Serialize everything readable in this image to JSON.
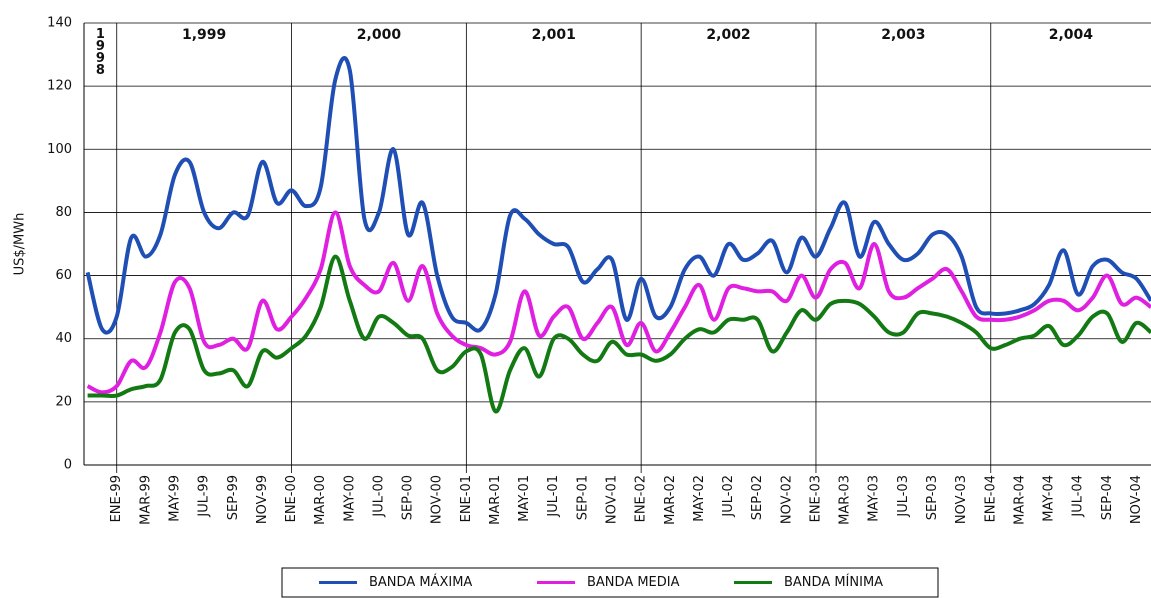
{
  "chart_data": {
    "type": "line",
    "y_label": "US$/MWh",
    "year_labels": [
      "1998",
      "1,999",
      "2,000",
      "2,001",
      "2,002",
      "2,003",
      "2,004"
    ],
    "categories": [
      null,
      null,
      "ENE-99",
      null,
      "MAR-99",
      null,
      "MAY-99",
      null,
      "JUL-99",
      null,
      "SEP-99",
      null,
      "NOV-99",
      null,
      "ENE-00",
      null,
      "MAR-00",
      null,
      "MAY-00",
      null,
      "JUL-00",
      null,
      "SEP-00",
      null,
      "NOV-00",
      null,
      "ENE-01",
      null,
      "MAR-01",
      null,
      "MAY-01",
      null,
      "JUL-01",
      null,
      "SEP-01",
      null,
      "NOV-01",
      null,
      "ENE-02",
      null,
      "MAR-02",
      null,
      "MAY-02",
      null,
      "JUL-02",
      null,
      "SEP-02",
      null,
      "NOV-02",
      null,
      "ENE-03",
      null,
      "MAR-03",
      null,
      "MAY-03",
      null,
      "JUL-03",
      null,
      "SEP-03",
      null,
      "NOV-03",
      null,
      "ENE-04",
      null,
      "MAR-04",
      null,
      "MAY-04",
      null,
      "JUL-04",
      null,
      "SEP-04",
      null,
      "NOV-04",
      null
    ],
    "series": [
      {
        "name": "BANDA MÁXIMA",
        "color": "#1f4fb4",
        "values": [
          61,
          43,
          47,
          72,
          66,
          73,
          92,
          96,
          80,
          75,
          80,
          79,
          96,
          83,
          87,
          82,
          88,
          122,
          125,
          78,
          80,
          100,
          73,
          83,
          60,
          47,
          45,
          43,
          54,
          79,
          78,
          73,
          70,
          69,
          58,
          62,
          65,
          46,
          59,
          47,
          50,
          62,
          66,
          60,
          70,
          65,
          67,
          71,
          61,
          72,
          66,
          75,
          83,
          66,
          77,
          70,
          65,
          67,
          73,
          73,
          66,
          50,
          48,
          48,
          49,
          51,
          57,
          68,
          54,
          63,
          65,
          61,
          59,
          52
        ]
      },
      {
        "name": "BANDA MEDIA",
        "color": "#e020e0",
        "values": [
          25,
          23,
          25,
          33,
          31,
          42,
          58,
          56,
          39,
          38,
          40,
          37,
          52,
          43,
          47,
          53,
          62,
          80,
          63,
          57,
          55,
          64,
          52,
          63,
          48,
          41,
          38,
          37,
          35,
          39,
          55,
          41,
          47,
          50,
          40,
          45,
          50,
          38,
          45,
          36,
          42,
          50,
          57,
          46,
          56,
          56,
          55,
          55,
          52,
          60,
          53,
          62,
          64,
          56,
          70,
          55,
          53,
          56,
          59,
          62,
          55,
          47,
          46,
          46,
          47,
          49,
          52,
          52,
          49,
          53,
          60,
          51,
          53,
          50
        ]
      },
      {
        "name": "BANDA MÍNIMA",
        "color": "#137a13",
        "values": [
          22,
          22,
          22,
          24,
          25,
          27,
          42,
          43,
          30,
          29,
          30,
          25,
          36,
          34,
          37,
          41,
          50,
          66,
          52,
          40,
          47,
          45,
          41,
          40,
          30,
          31,
          36,
          35,
          17,
          30,
          37,
          28,
          40,
          40,
          35,
          33,
          39,
          35,
          35,
          33,
          35,
          40,
          43,
          42,
          46,
          46,
          46,
          36,
          42,
          49,
          46,
          51,
          52,
          51,
          47,
          42,
          42,
          48,
          48,
          47,
          45,
          42,
          37,
          38,
          40,
          41,
          44,
          38,
          41,
          47,
          48,
          39,
          45,
          42
        ]
      }
    ],
    "ylim": [
      0,
      140
    ],
    "yticks": [
      0,
      20,
      40,
      60,
      80,
      100,
      120,
      140
    ],
    "grid": true,
    "legend": "bottom"
  }
}
